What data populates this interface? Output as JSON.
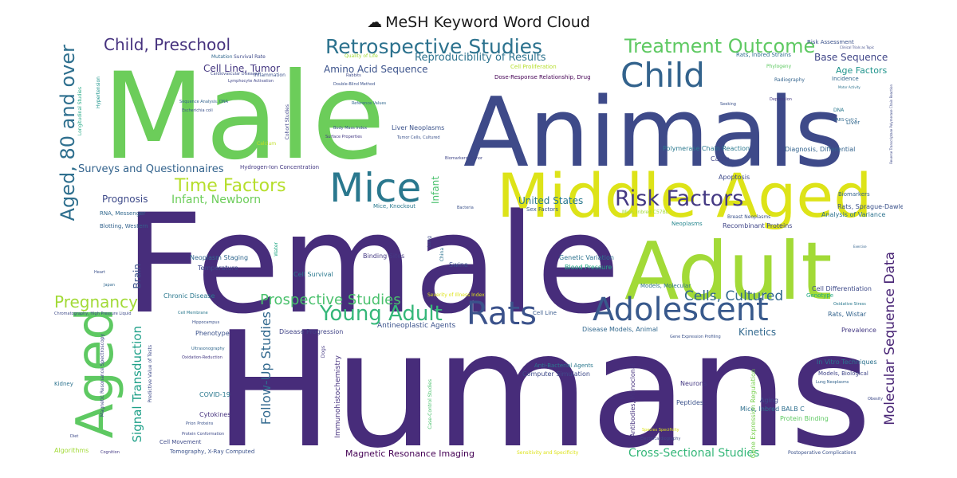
{
  "title": {
    "icon": "cloud-icon",
    "text": "MeSH Keyword Word Cloud"
  },
  "words": [
    {
      "text": "Humans",
      "color": "#472c7a"
    },
    {
      "text": "Female",
      "color": "#472d7b"
    },
    {
      "text": "Male",
      "color": "#6ccd5a"
    },
    {
      "text": "Animals",
      "color": "#3e4a89"
    },
    {
      "text": "Adult",
      "color": "#a2da37"
    },
    {
      "text": "Middle Aged",
      "color": "#dde318"
    },
    {
      "text": "Aged",
      "color": "#5ec962"
    },
    {
      "text": "Aged, 80 and over",
      "color": "#2e6f8e"
    },
    {
      "text": "Child",
      "color": "#33638d"
    },
    {
      "text": "Mice",
      "color": "#2a788e"
    },
    {
      "text": "Rats",
      "color": "#3b528b"
    },
    {
      "text": "Adolescent",
      "color": "#38598c"
    },
    {
      "text": "Young Adult",
      "color": "#35b779"
    },
    {
      "text": "Risk Factors",
      "color": "#443983"
    },
    {
      "text": "Retrospective Studies",
      "color": "#2c728e"
    },
    {
      "text": "Treatment Outcome",
      "color": "#5ec962"
    },
    {
      "text": "Child, Preschool",
      "color": "#46327e"
    },
    {
      "text": "Time Factors",
      "color": "#b5de2b"
    },
    {
      "text": "Pregnancy",
      "color": "#a2da37"
    },
    {
      "text": "Prospective Studies",
      "color": "#4ac16d"
    },
    {
      "text": "Cells, Cultured",
      "color": "#31688e"
    },
    {
      "text": "Molecular Sequence Data",
      "color": "#482475"
    },
    {
      "text": "Follow-Up Studies",
      "color": "#31688e"
    },
    {
      "text": "Signal Transduction",
      "color": "#1fa088"
    },
    {
      "text": "Infant, Newborn",
      "color": "#6ccd5a"
    },
    {
      "text": "Cross-Sectional Studies",
      "color": "#35b779"
    },
    {
      "text": "Surveys and Questionnaires",
      "color": "#33638d"
    },
    {
      "text": "Reproducibility of Results",
      "color": "#2c728e"
    },
    {
      "text": "Amino Acid Sequence",
      "color": "#3b528b"
    },
    {
      "text": "Cell Line, Tumor",
      "color": "#453781"
    },
    {
      "text": "United States",
      "color": "#2a788e"
    },
    {
      "text": "Prognosis",
      "color": "#3e4a89"
    },
    {
      "text": "Infant",
      "color": "#4ac16d"
    },
    {
      "text": "Brain",
      "color": "#3b528b"
    },
    {
      "text": "Base Sequence",
      "color": "#404688"
    },
    {
      "text": "Age Factors",
      "color": "#1f948c"
    },
    {
      "text": "Kinetics",
      "color": "#31688e"
    },
    {
      "text": "Magnetic Resonance Imaging",
      "color": "#440154"
    },
    {
      "text": "Immunohistochemistry",
      "color": "#46327e"
    },
    {
      "text": "Antineoplastic Agents",
      "color": "#3b528b"
    },
    {
      "text": "Disease Progression",
      "color": "#414487"
    },
    {
      "text": "Rats, Sprague-Dawley",
      "color": "#3b528b"
    },
    {
      "text": "Analysis of Variance",
      "color": "#2c728e"
    },
    {
      "text": "Recombinant Proteins",
      "color": "#404688"
    },
    {
      "text": "Neoplasms",
      "color": "#24868e"
    },
    {
      "text": "Genetic Variation",
      "color": "#2c728e"
    },
    {
      "text": "Blood Pressure",
      "color": "#22a884"
    },
    {
      "text": "Apoptosis",
      "color": "#3e4a89"
    },
    {
      "text": "Cattle",
      "color": "#404688"
    },
    {
      "text": "Diagnosis, Differential",
      "color": "#33638d"
    },
    {
      "text": "Polymerase Chain Reaction",
      "color": "#2a788e"
    },
    {
      "text": "Liver Neoplasms",
      "color": "#3b528b"
    },
    {
      "text": "Incidence",
      "color": "#31688e"
    },
    {
      "text": "Biomarkers",
      "color": "#33638d"
    },
    {
      "text": "Cell Differentiation",
      "color": "#3e4a89"
    },
    {
      "text": "Genotype",
      "color": "#22a884"
    },
    {
      "text": "Rats, Wistar",
      "color": "#33638d"
    },
    {
      "text": "Prevalence",
      "color": "#443983"
    },
    {
      "text": "In Vitro Techniques",
      "color": "#2c728e"
    },
    {
      "text": "Models, Biological",
      "color": "#404688"
    },
    {
      "text": "Aging",
      "color": "#3e4a89"
    },
    {
      "text": "Mice, Inbred BALB C",
      "color": "#2e6f8e"
    },
    {
      "text": "Protein Binding",
      "color": "#5ec962"
    },
    {
      "text": "Gene Expression Regulation",
      "color": "#7ad151"
    },
    {
      "text": "Neurons",
      "color": "#443983"
    },
    {
      "text": "Peptides",
      "color": "#3b528b"
    },
    {
      "text": "Antibodies, Monoclonal",
      "color": "#46327e"
    },
    {
      "text": "Computer Simulation",
      "color": "#3e4a89"
    },
    {
      "text": "Anti-Bacterial Agents",
      "color": "#2a788e"
    },
    {
      "text": "Disease Models, Animal",
      "color": "#31688e"
    },
    {
      "text": "Cell Line",
      "color": "#38598c"
    },
    {
      "text": "Models, Molecular",
      "color": "#2c728e"
    },
    {
      "text": "Swine",
      "color": "#3b528b"
    },
    {
      "text": "Cell Survival",
      "color": "#2a788e"
    },
    {
      "text": "Binding Sites",
      "color": "#443983"
    },
    {
      "text": "Temperature",
      "color": "#3e4a89"
    },
    {
      "text": "Neoplasm Staging",
      "color": "#31688e"
    },
    {
      "text": "Chronic Disease",
      "color": "#2a788e"
    },
    {
      "text": "Phenotype",
      "color": "#3b528b"
    },
    {
      "text": "Cytokines",
      "color": "#46327e"
    },
    {
      "text": "COVID-19",
      "color": "#2a788e"
    },
    {
      "text": "Cell Movement",
      "color": "#3e4a89"
    },
    {
      "text": "Tomography, X-Ray Computed",
      "color": "#3b528b"
    },
    {
      "text": "Algorithms",
      "color": "#a2da37"
    },
    {
      "text": "Kidney",
      "color": "#2c728e"
    },
    {
      "text": "Magnetic Resonance Spectroscopy",
      "color": "#404688"
    },
    {
      "text": "Predictive Value of Tests",
      "color": "#3e4a89"
    },
    {
      "text": "RNA, Messenger",
      "color": "#31688e"
    },
    {
      "text": "Blotting, Western",
      "color": "#33638d"
    },
    {
      "text": "Hydrogen-Ion Concentration",
      "color": "#443983"
    },
    {
      "text": "Mice, Knockout",
      "color": "#2a788e"
    },
    {
      "text": "Sex Factors",
      "color": "#38598c"
    },
    {
      "text": "Rats, Inbred Strains",
      "color": "#2e6f8e"
    },
    {
      "text": "Risk Assessment",
      "color": "#3b528b"
    },
    {
      "text": "Dose-Response Relationship, Drug",
      "color": "#440154"
    },
    {
      "text": "Cell Proliferation",
      "color": "#b5de2b"
    },
    {
      "text": "Quality of Life",
      "color": "#a2da37"
    },
    {
      "text": "Inflammation",
      "color": "#3b528b"
    },
    {
      "text": "Survival Rate",
      "color": "#3e4a89"
    },
    {
      "text": "Mutation",
      "color": "#31688e"
    },
    {
      "text": "Cohort Studies",
      "color": "#404688"
    },
    {
      "text": "Longitudinal Studies",
      "color": "#22a884"
    },
    {
      "text": "Hypertension",
      "color": "#1f948c"
    },
    {
      "text": "Liver",
      "color": "#31688e"
    },
    {
      "text": "DNA",
      "color": "#2a788e"
    },
    {
      "text": "Phylogeny",
      "color": "#5ec962"
    },
    {
      "text": "Radiography",
      "color": "#33638d"
    },
    {
      "text": "Sensitivity and Specificity",
      "color": "#dde318"
    },
    {
      "text": "Postoperative Complications",
      "color": "#3b528b"
    },
    {
      "text": "Case-Control Studies",
      "color": "#4ac16d"
    },
    {
      "text": "Lung",
      "color": "#3e4a89"
    },
    {
      "text": "China",
      "color": "#2c728e"
    },
    {
      "text": "Dogs",
      "color": "#443983"
    },
    {
      "text": "Water",
      "color": "#22a884"
    },
    {
      "text": "Calcium",
      "color": "#c0df25"
    },
    {
      "text": "Breast Neoplasms",
      "color": "#3b528b"
    },
    {
      "text": "Mice, Inbred C57BL",
      "color": "#a2da37"
    },
    {
      "text": "Severity of Illness Index",
      "color": "#dde318"
    },
    {
      "text": "Chromatography, High Pressure Liquid",
      "color": "#3e4a89"
    },
    {
      "text": "Oxidation-Reduction",
      "color": "#443983"
    },
    {
      "text": "Ultrasonography",
      "color": "#31688e"
    },
    {
      "text": "Hippocampus",
      "color": "#3b528b"
    },
    {
      "text": "Cell Membrane",
      "color": "#2a788e"
    },
    {
      "text": "Protein Conformation",
      "color": "#3e4a89"
    },
    {
      "text": "Prion Proteins",
      "color": "#3b528b"
    },
    {
      "text": "Species Specificity",
      "color": "#dde318"
    },
    {
      "text": "Electrocardiography",
      "color": "#3e4a89"
    },
    {
      "text": "Biomarkers, Tumor",
      "color": "#404688"
    },
    {
      "text": "Tumor Cells, Cultured",
      "color": "#3b528b"
    },
    {
      "text": "Obesity",
      "color": "#3e4a89"
    },
    {
      "text": "Lung Neoplasms",
      "color": "#33638d"
    },
    {
      "text": "Oxidative Stress",
      "color": "#2a788e"
    },
    {
      "text": "Heart",
      "color": "#3b528b"
    },
    {
      "text": "Japan",
      "color": "#31688e"
    },
    {
      "text": "Diet",
      "color": "#3e4a89"
    },
    {
      "text": "Cognition",
      "color": "#443983"
    },
    {
      "text": "Rabbits",
      "color": "#3e4a89"
    },
    {
      "text": "Double-Blind Method",
      "color": "#3b528b"
    },
    {
      "text": "Reference Values",
      "color": "#31688e"
    },
    {
      "text": "Body Mass Index",
      "color": "#3b528b"
    },
    {
      "text": "Surface Properties",
      "color": "#443983"
    },
    {
      "text": "Sequence Analysis, DNA",
      "color": "#33638d"
    },
    {
      "text": "Escherichia coli",
      "color": "#3b528b"
    },
    {
      "text": "Cardiovascular Diseases",
      "color": "#3e4a89"
    },
    {
      "text": "Lymphocyte Activation",
      "color": "#404688"
    },
    {
      "text": "Gene Expression Profiling",
      "color": "#3b528b"
    },
    {
      "text": "Clinical Trials as Topic",
      "color": "#3e4a89"
    },
    {
      "text": "Exercise",
      "color": "#33638d"
    },
    {
      "text": "Seeking",
      "color": "#3b528b"
    },
    {
      "text": "Depression",
      "color": "#443983"
    },
    {
      "text": "SARS-CoV-2",
      "color": "#31688e"
    },
    {
      "text": "Bacteria",
      "color": "#3b528b"
    },
    {
      "text": "Reverse Transcriptase Polymerase Chain Reaction",
      "color": "#3e4a89"
    },
    {
      "text": "Motor Activity",
      "color": "#2c728e"
    }
  ]
}
